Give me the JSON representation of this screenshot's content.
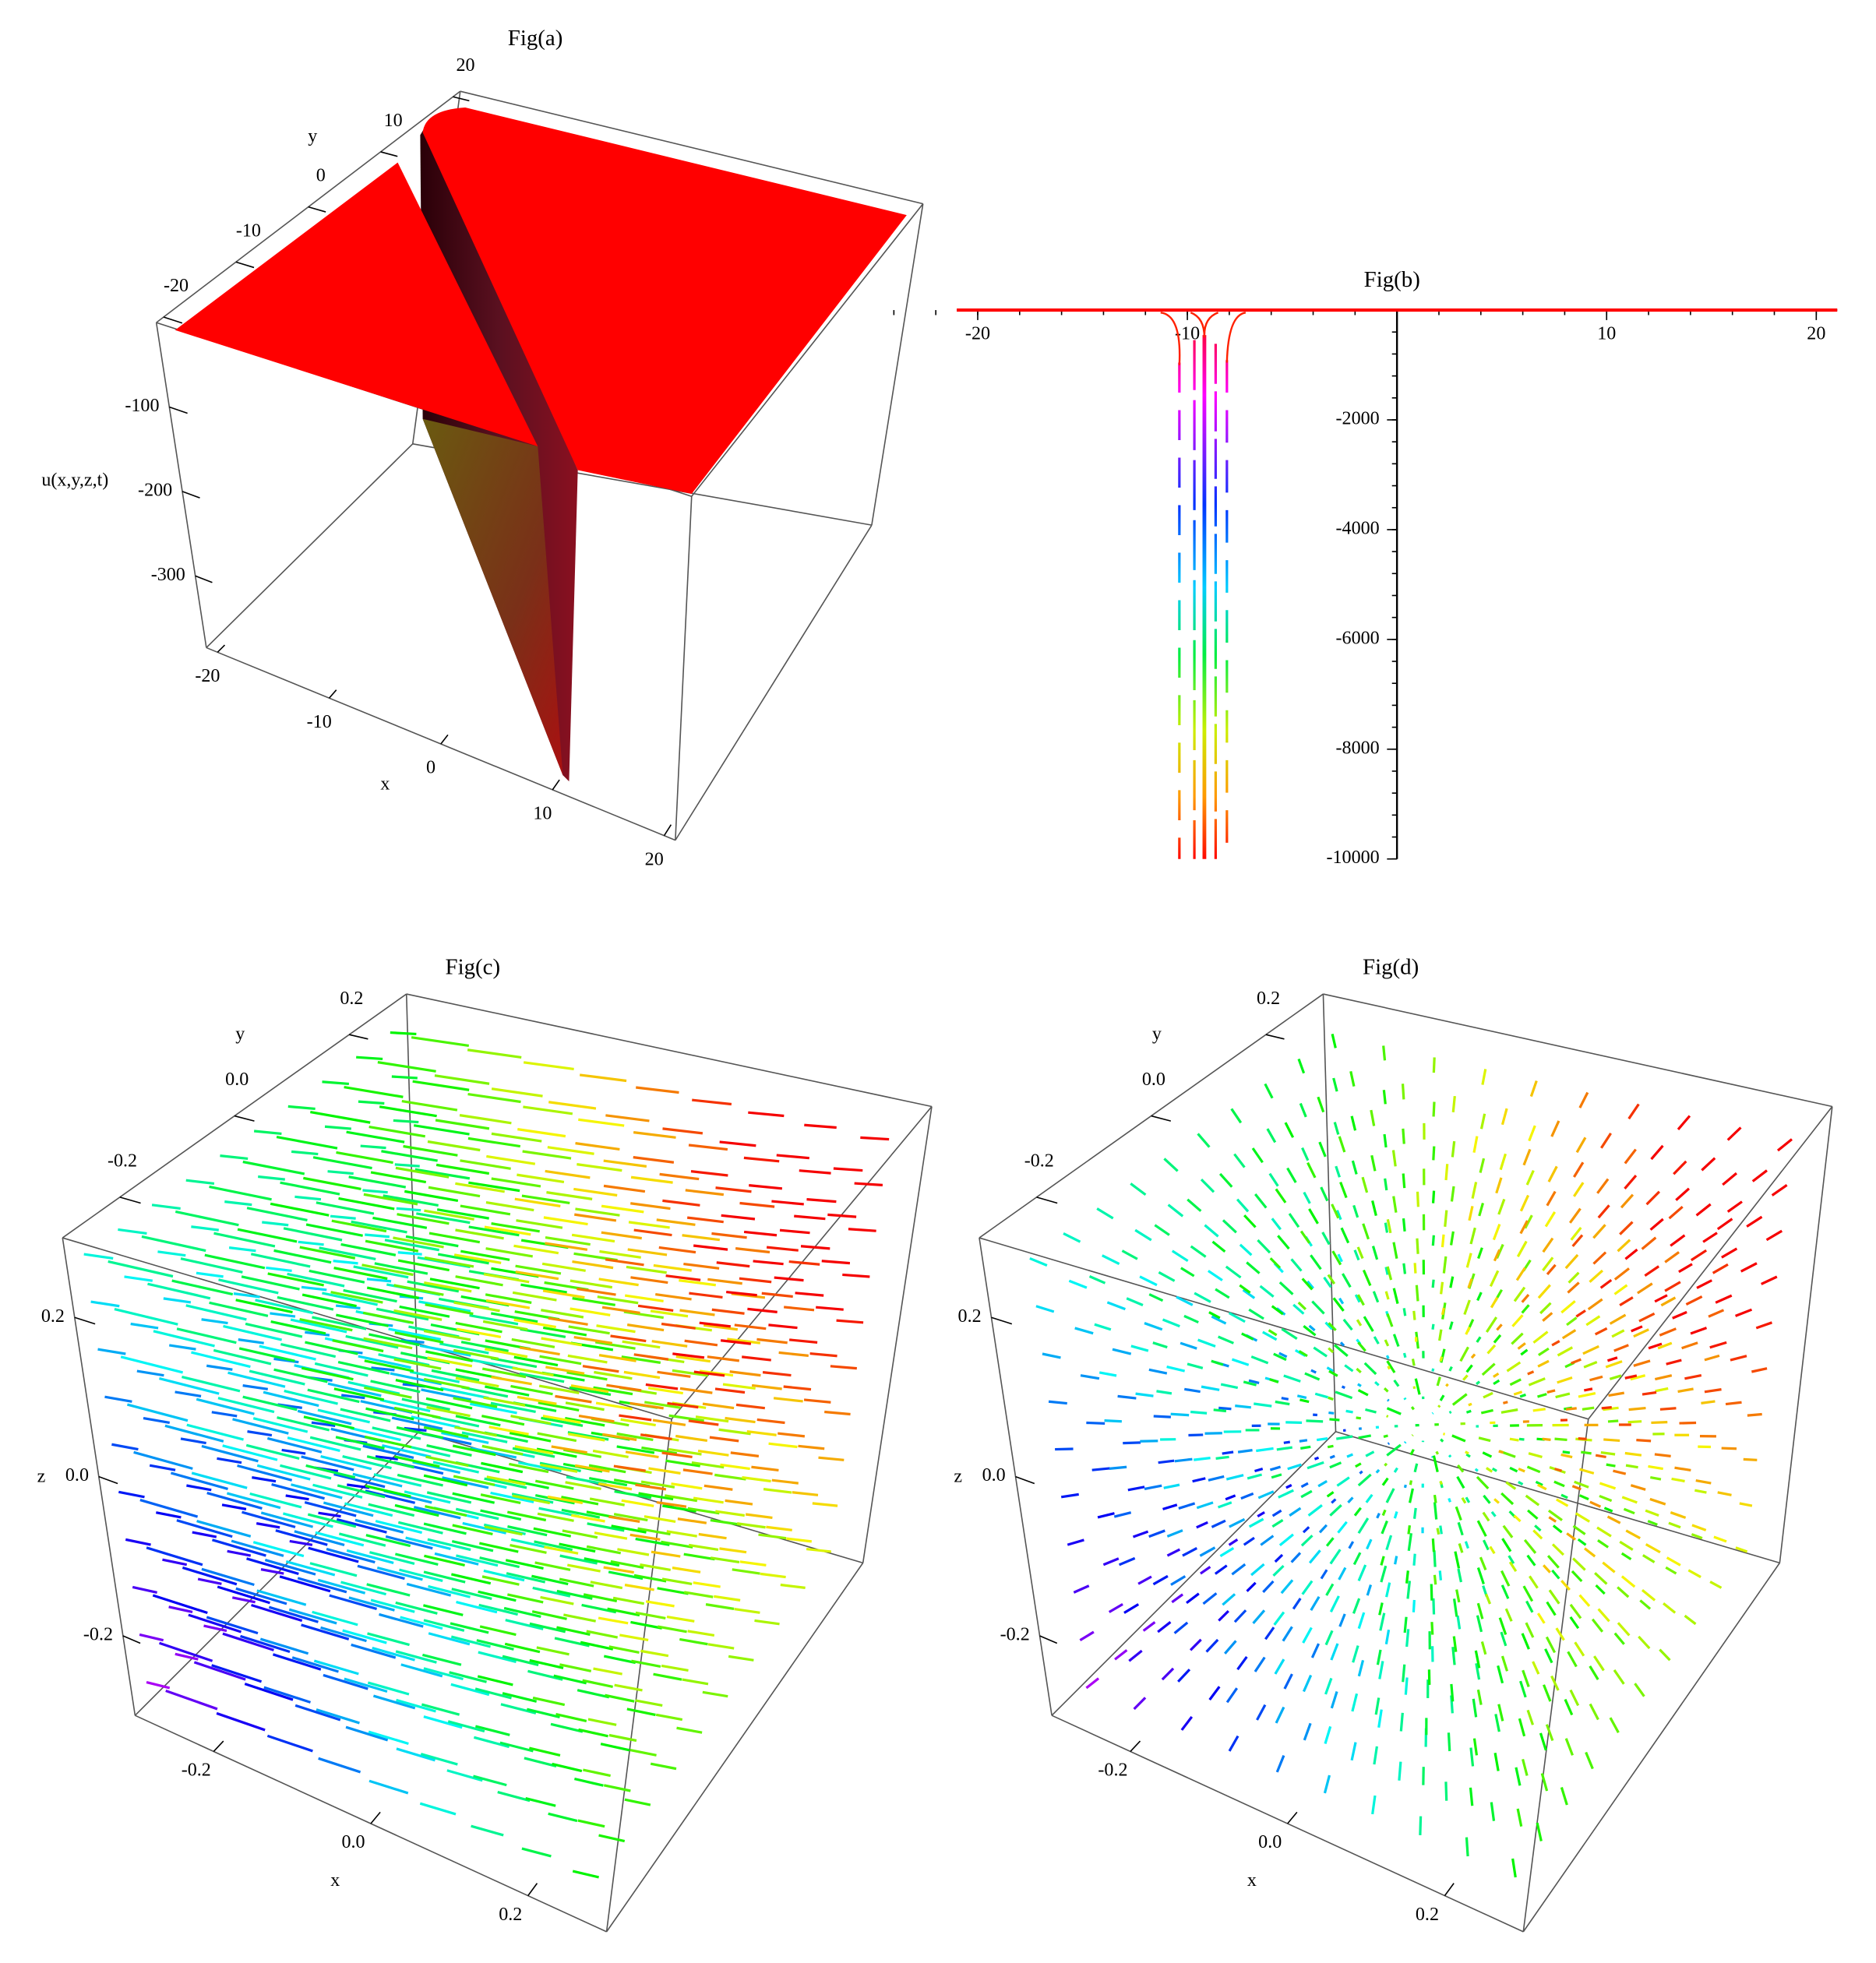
{
  "chart_data": [
    {
      "type": "surface3d",
      "title": "Fig(a)",
      "xlabel": "x",
      "ylabel": "y",
      "zlabel": "u(x,y,z,t)",
      "xlim": [
        -21,
        21
      ],
      "ylim": [
        -21,
        21
      ],
      "zlim": [
        -385,
        0
      ],
      "xticks": [
        -20,
        -10,
        0,
        10,
        20
      ],
      "yticks": [
        -20,
        -10,
        0,
        10,
        20
      ],
      "zticks": [
        -100,
        -200,
        -300
      ]
    },
    {
      "type": "line",
      "title": "Fig(b)",
      "xlim": [
        -21,
        21
      ],
      "ylim": [
        -10000,
        0
      ],
      "xticks": [
        -20,
        -10,
        10,
        20
      ],
      "yticks": [
        -2000,
        -4000,
        -6000,
        -8000,
        -10000
      ]
    },
    {
      "type": "vector3d",
      "title": "Fig(c)",
      "xlabel": "x",
      "ylabel": "y",
      "zlabel": "z",
      "xlim": [
        -0.3,
        0.3
      ],
      "ylim": [
        -0.3,
        0.3
      ],
      "zlim": [
        -0.3,
        0.3
      ],
      "xticks": [
        -0.2,
        {
          "value": 0,
          "label": "0.0"
        },
        0.2
      ],
      "yticks": [
        -0.2,
        {
          "value": 0,
          "label": "0.0"
        },
        0.2
      ],
      "zticks": [
        -0.2,
        {
          "value": 0,
          "label": "0.0"
        },
        0.2
      ]
    },
    {
      "type": "vector3d",
      "title": "Fig(d)",
      "xlabel": "x",
      "ylabel": "y",
      "zlabel": "z",
      "xlim": [
        -0.3,
        0.3
      ],
      "ylim": [
        -0.3,
        0.3
      ],
      "zlim": [
        -0.3,
        0.3
      ],
      "xticks": [
        -0.2,
        {
          "value": 0,
          "label": "0.0"
        },
        0.2
      ],
      "yticks": [
        -0.2,
        {
          "value": 0,
          "label": "0.0"
        },
        0.2
      ],
      "zticks": [
        -0.2,
        {
          "value": 0,
          "label": "0.0"
        },
        0.2
      ]
    }
  ]
}
